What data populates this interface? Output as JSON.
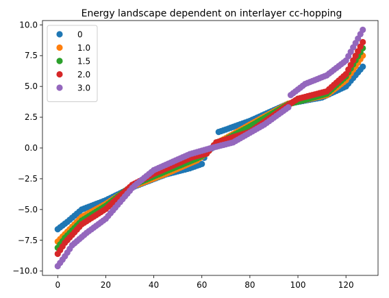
{
  "chart_data": {
    "type": "scatter",
    "title": "Energy landscape dependent on interlayer cc-hopping",
    "xlabel": "",
    "ylabel": "",
    "xlim": [
      -6.35,
      133.35
    ],
    "ylim": [
      -10.35,
      10.35
    ],
    "x_ticks": [
      0,
      20,
      40,
      60,
      80,
      100,
      120
    ],
    "x_tick_labels": [
      "0",
      "20",
      "40",
      "60",
      "80",
      "100",
      "120"
    ],
    "y_ticks": [
      -10,
      -7.5,
      -5,
      -2.5,
      0,
      2.5,
      5,
      7.5,
      10
    ],
    "y_tick_labels": [
      "−10.0",
      "−7.5",
      "−5.0",
      "−2.5",
      "0.0",
      "2.5",
      "5.0",
      "7.5",
      "10.0"
    ],
    "grid": false,
    "legend_position": "upper-left",
    "marker": "circle",
    "x": {
      "start": 0,
      "end": 127,
      "step": 1
    },
    "series": [
      {
        "name": "0",
        "color": "#1f77b4",
        "knots": [
          [
            0,
            -6.6
          ],
          [
            4,
            -6.0
          ],
          [
            10,
            -5.0
          ],
          [
            20,
            -4.25
          ],
          [
            31,
            -3.2
          ],
          [
            45,
            -2.15
          ],
          [
            55,
            -1.65
          ],
          [
            60,
            -1.3
          ],
          [
            62,
            -0.3
          ],
          [
            66,
            0.2
          ],
          [
            67,
            1.3
          ],
          [
            70,
            1.5
          ],
          [
            80,
            2.2
          ],
          [
            96,
            3.6
          ],
          [
            110,
            4.1
          ],
          [
            120,
            5.0
          ],
          [
            127,
            6.6
          ]
        ]
      },
      {
        "name": "1.0",
        "color": "#ff7f0e",
        "knots": [
          [
            0,
            -7.6
          ],
          [
            3,
            -7.0
          ],
          [
            10,
            -5.6
          ],
          [
            20,
            -4.55
          ],
          [
            31,
            -3.15
          ],
          [
            45,
            -2.1
          ],
          [
            58,
            -1.0
          ],
          [
            62,
            -0.4
          ],
          [
            64,
            0.0
          ],
          [
            66,
            0.4
          ],
          [
            70,
            0.8
          ],
          [
            80,
            1.9
          ],
          [
            96,
            3.6
          ],
          [
            112,
            4.3
          ],
          [
            120,
            5.5
          ],
          [
            127,
            7.5
          ]
        ]
      },
      {
        "name": "1.5",
        "color": "#2ca02c",
        "knots": [
          [
            0,
            -8.1
          ],
          [
            3,
            -7.3
          ],
          [
            10,
            -5.9
          ],
          [
            20,
            -4.7
          ],
          [
            31,
            -3.05
          ],
          [
            45,
            -1.9
          ],
          [
            58,
            -0.85
          ],
          [
            62,
            -0.45
          ],
          [
            64,
            0.0
          ],
          [
            66,
            0.45
          ],
          [
            70,
            0.7
          ],
          [
            80,
            1.75
          ],
          [
            96,
            3.55
          ],
          [
            112,
            4.4
          ],
          [
            120,
            5.8
          ],
          [
            127,
            8.1
          ]
        ]
      },
      {
        "name": "2.0",
        "color": "#d62728",
        "knots": [
          [
            0,
            -8.6
          ],
          [
            3,
            -7.7
          ],
          [
            10,
            -6.2
          ],
          [
            20,
            -4.95
          ],
          [
            31,
            -3.0
          ],
          [
            40,
            -2.1
          ],
          [
            56,
            -0.75
          ],
          [
            62,
            -0.45
          ],
          [
            64,
            0.0
          ],
          [
            66,
            0.45
          ],
          [
            80,
            1.3
          ],
          [
            96,
            3.5
          ],
          [
            100,
            4.0
          ],
          [
            112,
            4.6
          ],
          [
            120,
            6.0
          ],
          [
            127,
            8.6
          ]
        ]
      },
      {
        "name": "3.0",
        "color": "#9467bd",
        "knots": [
          [
            0,
            -9.6
          ],
          [
            3,
            -8.8
          ],
          [
            6,
            -7.9
          ],
          [
            12,
            -6.9
          ],
          [
            20,
            -5.75
          ],
          [
            31,
            -3.25
          ],
          [
            33,
            -2.9
          ],
          [
            40,
            -1.8
          ],
          [
            55,
            -0.5
          ],
          [
            64,
            0.0
          ],
          [
            73,
            0.45
          ],
          [
            86,
            1.9
          ],
          [
            96,
            3.3
          ],
          [
            97,
            4.3
          ],
          [
            103,
            5.2
          ],
          [
            112,
            5.9
          ],
          [
            120,
            7.1
          ],
          [
            127,
            9.6
          ]
        ]
      }
    ]
  }
}
